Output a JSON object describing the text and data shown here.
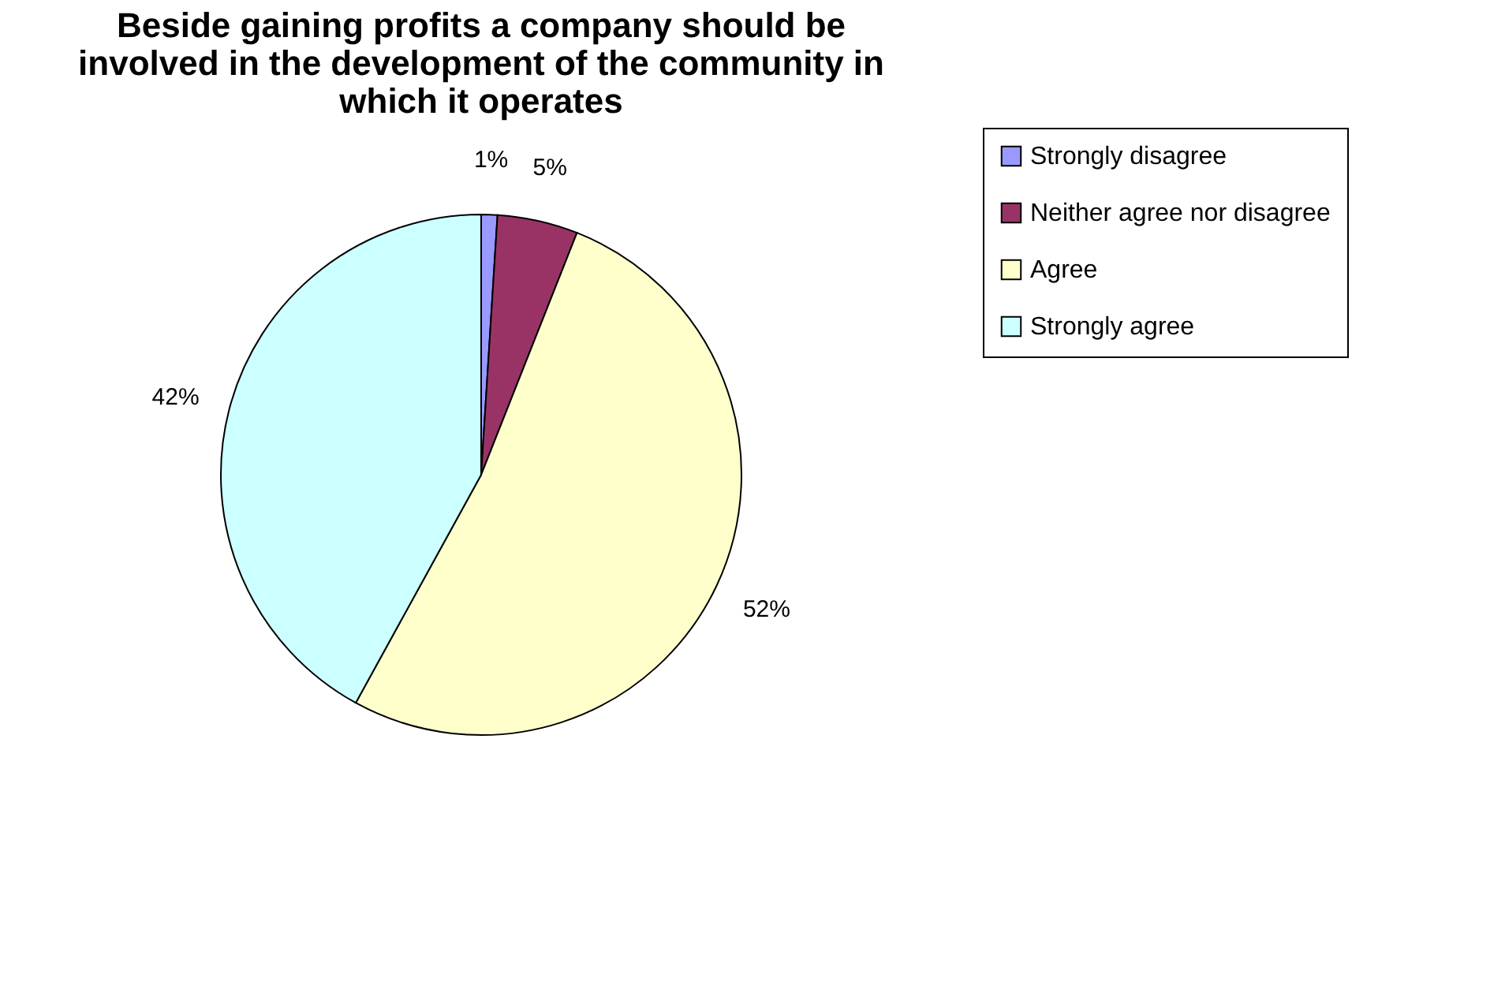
{
  "chart_data": {
    "type": "pie",
    "title": "Beside gaining profits a company should be\ninvolved in the development of the community in\nwhich it operates",
    "categories": [
      "Strongly disagree",
      "Neither agree nor disagree",
      "Agree",
      "Strongly agree"
    ],
    "values": [
      1,
      5,
      52,
      42
    ],
    "colors": [
      "#9999ff",
      "#993366",
      "#ffffcc",
      "#ccffff"
    ],
    "value_labels": [
      "1%",
      "5%",
      "52%",
      "42%"
    ],
    "legend": "right"
  }
}
